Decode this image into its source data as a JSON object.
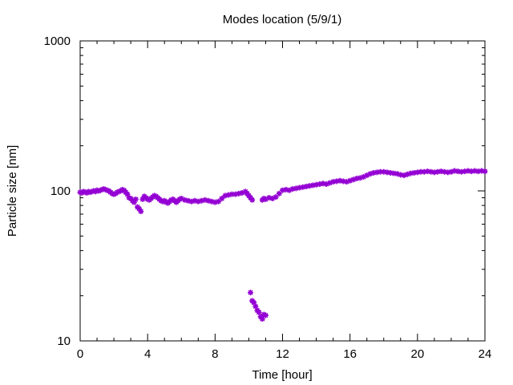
{
  "chart_data": {
    "type": "scatter",
    "title": "Modes location (5/9/1)",
    "xlabel": "Time [hour]",
    "ylabel": "Particle size [nm]",
    "xlim": [
      0,
      24
    ],
    "ylim": [
      10,
      1000
    ],
    "yscale": "log",
    "xticks": [
      0,
      4,
      8,
      12,
      16,
      20,
      24
    ],
    "xtick_labels": [
      "0",
      "4",
      "8",
      "12",
      "16",
      "20",
      "24"
    ],
    "yticks": [
      10,
      100,
      1000
    ],
    "ytick_labels": [
      "10",
      "100",
      "1000"
    ],
    "grid": false,
    "legend": "none",
    "series": [
      {
        "color": "#9400d3",
        "marker": "star",
        "points": [
          [
            0.0,
            98
          ],
          [
            0.1,
            97
          ],
          [
            0.2,
            99
          ],
          [
            0.3,
            98
          ],
          [
            0.4,
            97
          ],
          [
            0.5,
            99
          ],
          [
            0.6,
            98
          ],
          [
            0.7,
            99
          ],
          [
            0.8,
            100
          ],
          [
            0.9,
            99
          ],
          [
            1.0,
            101
          ],
          [
            1.1,
            100
          ],
          [
            1.2,
            101
          ],
          [
            1.3,
            102
          ],
          [
            1.4,
            103
          ],
          [
            1.5,
            102
          ],
          [
            1.6,
            101
          ],
          [
            1.7,
            100
          ],
          [
            1.8,
            98
          ],
          [
            1.9,
            96
          ],
          [
            2.0,
            95
          ],
          [
            2.1,
            96
          ],
          [
            2.2,
            98
          ],
          [
            2.3,
            99
          ],
          [
            2.4,
            100
          ],
          [
            2.5,
            102
          ],
          [
            2.6,
            101
          ],
          [
            2.7,
            98
          ],
          [
            2.8,
            95
          ],
          [
            2.9,
            90
          ],
          [
            3.0,
            89
          ],
          [
            3.1,
            86
          ],
          [
            3.2,
            84
          ],
          [
            3.3,
            88
          ],
          [
            3.4,
            78
          ],
          [
            3.5,
            76
          ],
          [
            3.6,
            73
          ],
          [
            3.7,
            88
          ],
          [
            3.8,
            92
          ],
          [
            3.9,
            90
          ],
          [
            4.0,
            88
          ],
          [
            4.1,
            87
          ],
          [
            4.2,
            89
          ],
          [
            4.3,
            91
          ],
          [
            4.4,
            93
          ],
          [
            4.5,
            92
          ],
          [
            4.6,
            90
          ],
          [
            4.7,
            88
          ],
          [
            4.8,
            86
          ],
          [
            4.9,
            85
          ],
          [
            5.0,
            86
          ],
          [
            5.1,
            84
          ],
          [
            5.2,
            83
          ],
          [
            5.3,
            85
          ],
          [
            5.4,
            87
          ],
          [
            5.5,
            88
          ],
          [
            5.6,
            86
          ],
          [
            5.7,
            84
          ],
          [
            5.8,
            86
          ],
          [
            5.9,
            88
          ],
          [
            6.0,
            89
          ],
          [
            6.2,
            87
          ],
          [
            6.4,
            86
          ],
          [
            6.6,
            85
          ],
          [
            6.8,
            86
          ],
          [
            7.0,
            85
          ],
          [
            7.2,
            86
          ],
          [
            7.4,
            87
          ],
          [
            7.6,
            86
          ],
          [
            7.8,
            85
          ],
          [
            8.0,
            84
          ],
          [
            8.2,
            85
          ],
          [
            8.4,
            89
          ],
          [
            8.6,
            93
          ],
          [
            8.8,
            94
          ],
          [
            9.0,
            95
          ],
          [
            9.2,
            95
          ],
          [
            9.4,
            96
          ],
          [
            9.6,
            97
          ],
          [
            9.8,
            99
          ],
          [
            9.9,
            96
          ],
          [
            10.0,
            93
          ],
          [
            10.1,
            90
          ],
          [
            10.2,
            87
          ],
          [
            10.1,
            21
          ],
          [
            10.2,
            18.5
          ],
          [
            10.3,
            18
          ],
          [
            10.4,
            17
          ],
          [
            10.5,
            16
          ],
          [
            10.6,
            15.5
          ],
          [
            10.7,
            14.5
          ],
          [
            10.8,
            14
          ],
          [
            10.9,
            15
          ],
          [
            11.0,
            14.8
          ],
          [
            10.8,
            87
          ],
          [
            10.9,
            89
          ],
          [
            11.0,
            88
          ],
          [
            11.2,
            90
          ],
          [
            11.4,
            89
          ],
          [
            11.6,
            91
          ],
          [
            11.8,
            96
          ],
          [
            12.0,
            101
          ],
          [
            12.2,
            102
          ],
          [
            12.4,
            101
          ],
          [
            12.6,
            103
          ],
          [
            12.8,
            104
          ],
          [
            13.0,
            105
          ],
          [
            13.2,
            106
          ],
          [
            13.4,
            107
          ],
          [
            13.6,
            108
          ],
          [
            13.8,
            109
          ],
          [
            14.0,
            110
          ],
          [
            14.2,
            111
          ],
          [
            14.4,
            112
          ],
          [
            14.6,
            111
          ],
          [
            14.8,
            113
          ],
          [
            15.0,
            115
          ],
          [
            15.2,
            116
          ],
          [
            15.4,
            117
          ],
          [
            15.6,
            116
          ],
          [
            15.8,
            115
          ],
          [
            16.0,
            117
          ],
          [
            16.2,
            119
          ],
          [
            16.4,
            121
          ],
          [
            16.6,
            122
          ],
          [
            16.8,
            124
          ],
          [
            17.0,
            127
          ],
          [
            17.2,
            130
          ],
          [
            17.4,
            132
          ],
          [
            17.6,
            133
          ],
          [
            17.8,
            134
          ],
          [
            18.0,
            134
          ],
          [
            18.2,
            133
          ],
          [
            18.4,
            132
          ],
          [
            18.6,
            131
          ],
          [
            18.8,
            130
          ],
          [
            19.0,
            128
          ],
          [
            19.2,
            127
          ],
          [
            19.4,
            129
          ],
          [
            19.6,
            131
          ],
          [
            19.8,
            132
          ],
          [
            20.0,
            133
          ],
          [
            20.2,
            134
          ],
          [
            20.4,
            134
          ],
          [
            20.6,
            135
          ],
          [
            20.8,
            134
          ],
          [
            21.0,
            133
          ],
          [
            21.2,
            134
          ],
          [
            21.4,
            135
          ],
          [
            21.6,
            134
          ],
          [
            21.8,
            133
          ],
          [
            22.0,
            134
          ],
          [
            22.2,
            136
          ],
          [
            22.4,
            135
          ],
          [
            22.6,
            134
          ],
          [
            22.8,
            135
          ],
          [
            23.0,
            136
          ],
          [
            23.2,
            135
          ],
          [
            23.4,
            136
          ],
          [
            23.6,
            135
          ],
          [
            23.8,
            136
          ],
          [
            24.0,
            135
          ]
        ]
      }
    ]
  }
}
